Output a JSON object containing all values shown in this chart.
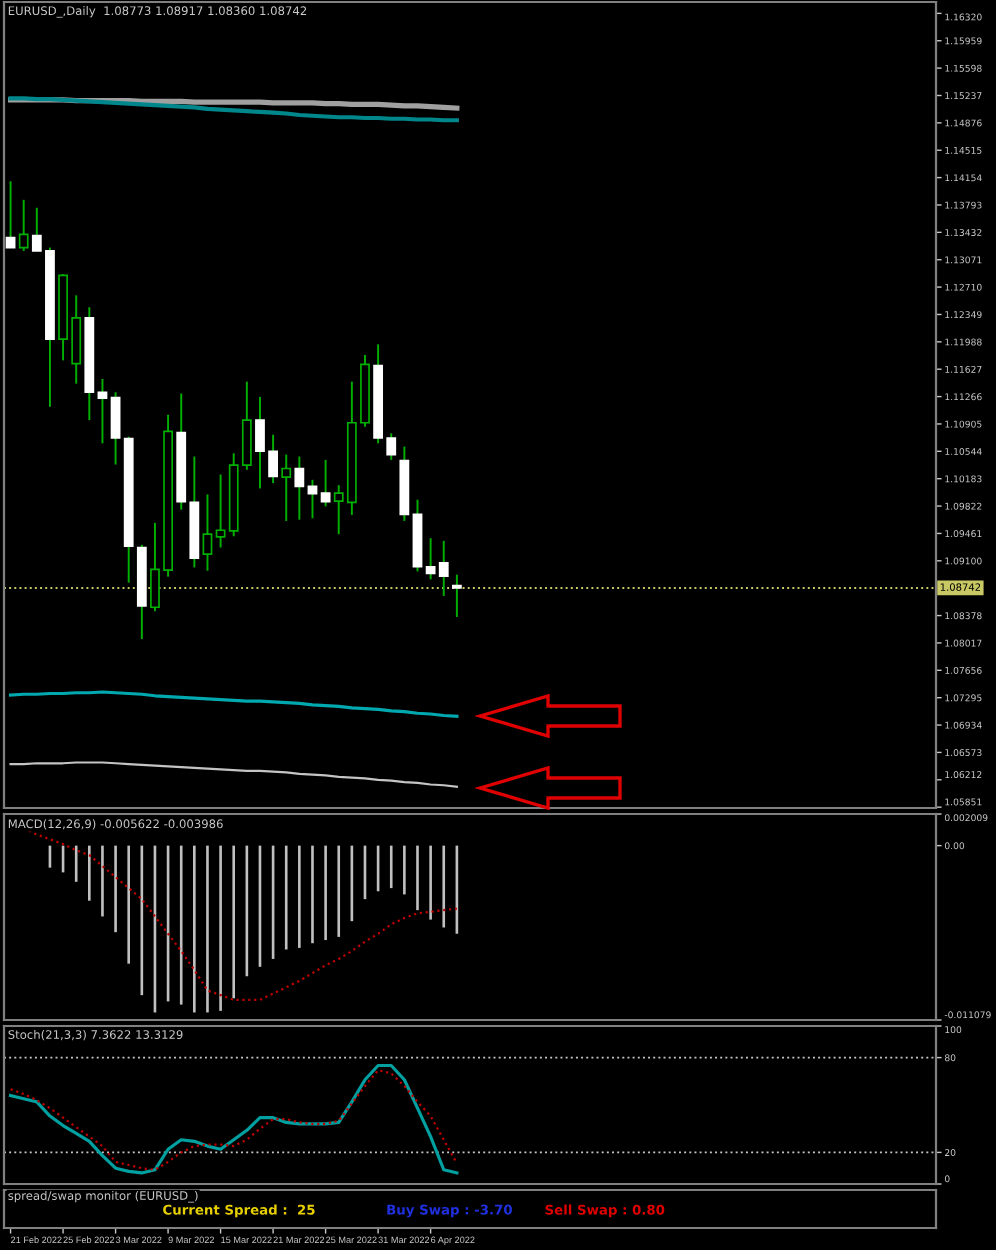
{
  "chart_data": [
    {
      "type": "candlestick",
      "title": "EURUSD_,Daily  1.08773 1.08917 1.08360 1.08742",
      "tick_labels": "y",
      "categories": [
        null,
        null,
        null,
        null,
        null,
        null,
        null,
        null,
        null,
        null,
        null,
        null,
        null,
        null,
        null,
        null,
        null,
        null,
        null,
        null,
        null,
        null,
        null,
        null,
        null,
        null,
        null,
        null,
        null,
        null,
        null,
        null,
        null,
        null,
        null,
        null,
        null,
        null,
        null,
        null,
        null,
        null,
        null,
        null,
        null,
        null,
        null,
        null,
        null,
        null,
        null,
        null,
        null,
        null,
        null,
        null,
        null,
        null,
        null,
        null,
        null,
        null,
        null,
        null,
        null,
        null,
        null,
        null,
        null,
        null,
        null
      ],
      "color": "#00b000",
      "colors": [
        "#ffffff",
        "#000000",
        "#ffffff",
        "#ffffff",
        "#000000",
        "#000000",
        "#ffffff",
        "#ffffff",
        "#ffffff",
        "#ffffff",
        "#ffffff",
        "#000000",
        "#000000",
        "#ffffff",
        "#ffffff",
        "#000000",
        "#000000",
        "#000000",
        "#000000",
        "#ffffff",
        "#ffffff",
        "#000000",
        "#ffffff",
        "#ffffff",
        "#ffffff",
        "#000000",
        "#000000",
        "#000000",
        "#ffffff",
        "#ffffff",
        "#ffffff",
        "#ffffff",
        "#ffffff",
        "#ffffff",
        "#ffffff",
        null,
        null,
        null,
        null,
        null,
        null,
        null,
        null,
        null,
        null,
        null,
        null,
        null,
        null,
        null,
        null,
        null,
        null,
        null,
        null,
        null,
        null,
        null,
        null,
        null,
        null,
        null,
        null,
        null,
        null,
        null,
        null,
        null,
        null,
        null,
        null
      ],
      "ohlc": [
        [
          1.13362,
          1.14106,
          1.13231,
          1.13231
        ],
        [
          1.13231,
          1.13861,
          1.13187,
          1.13406
        ],
        [
          1.13389,
          1.13756,
          1.13187,
          1.13187
        ],
        [
          1.13187,
          1.13231,
          1.11131,
          1.12024
        ],
        [
          1.12024,
          1.12881,
          1.11744,
          1.12864
        ],
        [
          1.117,
          1.12601,
          1.11437,
          1.12304
        ],
        [
          1.12304,
          1.12444,
          1.10956,
          1.11323
        ],
        [
          1.11323,
          1.11498,
          1.1065,
          1.11245
        ],
        [
          1.11253,
          1.11323,
          1.1037,
          1.1072
        ],
        [
          1.10711,
          1.10737,
          1.08812,
          1.09293
        ],
        [
          1.09276,
          1.09311,
          1.08068,
          1.08506
        ],
        [
          1.08488,
          1.096,
          1.08436,
          1.08987
        ],
        [
          1.08978,
          1.11026,
          1.08891,
          1.10807
        ],
        [
          1.1079,
          1.11306,
          1.09775,
          1.0988
        ],
        [
          1.09871,
          1.10475,
          1.09013,
          1.09136
        ],
        [
          1.09188,
          1.09976,
          1.08969,
          1.09451
        ],
        [
          1.09416,
          1.10238,
          1.09276,
          1.09503
        ],
        [
          1.09495,
          1.10518,
          1.09424,
          1.10361
        ],
        [
          1.10361,
          1.11463,
          1.103,
          1.10956
        ],
        [
          1.10956,
          1.11262,
          1.10055,
          1.10545
        ],
        [
          1.10545,
          1.10763,
          1.10125,
          1.10212
        ],
        [
          1.10203,
          1.10501,
          1.09626,
          1.10317
        ],
        [
          1.10317,
          1.10475,
          1.09643,
          1.10081
        ],
        [
          1.10081,
          1.10168,
          1.09661,
          1.09985
        ],
        [
          1.09993,
          1.10431,
          1.09818,
          1.0988
        ],
        [
          1.09888,
          1.10098,
          1.09451,
          1.09993
        ],
        [
          1.09871,
          1.11463,
          1.09705,
          1.10921
        ],
        [
          1.10921,
          1.11814,
          1.10868,
          1.11691
        ],
        [
          1.11674,
          1.11954,
          1.1065,
          1.1072
        ],
        [
          1.1072,
          1.10781,
          1.10431,
          1.10501
        ],
        [
          1.10422,
          1.10606,
          1.09626,
          1.09713
        ],
        [
          1.09713,
          1.09906,
          1.08961,
          1.09022
        ],
        [
          1.09022,
          1.09398,
          1.08856,
          1.08934
        ],
        [
          1.09074,
          1.09363,
          1.08637,
          1.08899
        ],
        [
          1.08773,
          1.08917,
          1.0836,
          1.08742
        ],
        null,
        null,
        null,
        null,
        null,
        null,
        null,
        null,
        null,
        null,
        null,
        null,
        null,
        null,
        null,
        null,
        null,
        null,
        null,
        null,
        null,
        null,
        null,
        null,
        null,
        null,
        null,
        null,
        null,
        null,
        null,
        null,
        null,
        null,
        null,
        null
      ],
      "series": [
        {
          "type": "line",
          "color": "#a0a0a0",
          "values": [
            1.1518,
            1.1518,
            1.1518,
            1.1518,
            1.1518,
            1.1517,
            1.1517,
            1.1517,
            1.1517,
            1.1517,
            1.1516,
            1.1516,
            1.1516,
            1.1516,
            1.1515,
            1.1515,
            1.1515,
            1.1515,
            1.1515,
            1.1515,
            1.1514,
            1.1514,
            1.1514,
            1.1514,
            1.1513,
            1.1513,
            1.1512,
            1.1512,
            1.1512,
            1.1511,
            1.151,
            1.151,
            1.1509,
            1.1508,
            1.1507,
            null,
            null,
            null,
            null,
            null,
            null,
            null,
            null,
            null,
            null,
            null,
            null,
            null,
            null,
            null,
            null,
            null,
            null,
            null,
            null,
            null,
            null,
            null,
            null,
            null,
            null,
            null,
            null,
            null,
            null,
            null,
            null,
            null,
            null,
            null,
            null
          ]
        },
        {
          "type": "line",
          "color": "#00878c",
          "values": [
            1.152,
            1.152,
            1.1519,
            1.1519,
            1.1518,
            1.1517,
            1.1516,
            1.1515,
            1.1514,
            1.1513,
            1.1512,
            1.1511,
            1.151,
            1.1509,
            1.1508,
            1.1506,
            1.1505,
            1.1504,
            1.1503,
            1.1502,
            1.1501,
            1.15,
            1.1498,
            1.1497,
            1.1496,
            1.1495,
            1.1495,
            1.1494,
            1.1494,
            1.1493,
            1.1493,
            1.1492,
            1.1492,
            1.1491,
            1.1491,
            null,
            null,
            null,
            null,
            null,
            null,
            null,
            null,
            null,
            null,
            null,
            null,
            null,
            null,
            null,
            null,
            null,
            null,
            null,
            null,
            null,
            null,
            null,
            null,
            null,
            null,
            null,
            null,
            null,
            null,
            null,
            null,
            null,
            null,
            null,
            null
          ]
        },
        {
          "type": "line",
          "color": "#00a8b0",
          "values": [
            1.0733,
            1.0734,
            1.0734,
            1.0735,
            1.0735,
            1.0736,
            1.0736,
            1.0737,
            1.0736,
            1.0735,
            1.0734,
            1.0732,
            1.0731,
            1.073,
            1.0729,
            1.0728,
            1.0727,
            1.0726,
            1.0725,
            1.0725,
            1.0724,
            1.0723,
            1.0722,
            1.072,
            1.0719,
            1.0718,
            1.0716,
            1.0715,
            1.0714,
            1.0712,
            1.0711,
            1.0709,
            1.0708,
            1.0706,
            1.0705,
            null,
            null,
            null,
            null,
            null,
            null,
            null,
            null,
            null,
            null,
            null,
            null,
            null,
            null,
            null,
            null,
            null,
            null,
            null,
            null,
            null,
            null,
            null,
            null,
            null,
            null,
            null,
            null,
            null,
            null,
            null,
            null,
            null,
            null,
            null,
            null
          ]
        },
        {
          "type": "line",
          "color": "#c4c4c4",
          "values": [
            1.0642,
            1.0642,
            1.0643,
            1.0643,
            1.0643,
            1.0644,
            1.0644,
            1.0644,
            1.0643,
            1.0642,
            1.0641,
            1.064,
            1.0639,
            1.0638,
            1.0637,
            1.0636,
            1.0635,
            1.0634,
            1.0633,
            1.0633,
            1.0632,
            1.0631,
            1.0629,
            1.0628,
            1.0627,
            1.0625,
            1.0624,
            1.0623,
            1.0621,
            1.062,
            1.0618,
            1.0617,
            1.0615,
            1.0614,
            1.0612,
            null,
            null,
            null,
            null,
            null,
            null,
            null,
            null,
            null,
            null,
            null,
            null,
            null,
            null,
            null,
            null,
            null,
            null,
            null,
            null,
            null,
            null,
            null,
            null,
            null,
            null,
            null,
            null,
            null,
            null,
            null,
            null,
            null,
            null,
            null,
            null
          ]
        }
      ],
      "ylim": [
        1.0584,
        1.1647
      ],
      "yticks": [
        {
          "value": 1.1632,
          "label": "1.16320"
        },
        1.15959,
        1.15598,
        1.15237,
        1.14876,
        1.14515,
        1.14154,
        1.13793,
        1.13432,
        1.13071,
        {
          "value": 1.1271,
          "label": "1.12710"
        },
        1.12349,
        1.11988,
        1.11627,
        1.11266,
        1.10905,
        1.10544,
        1.10183,
        1.09822,
        1.09461,
        {
          "value": 1.091,
          "label": "1.09100"
        },
        1.08378,
        1.08017,
        1.07656,
        1.07295,
        1.06934,
        1.06573,
        1.06212,
        1.05851
      ],
      "ref_lines": [
        {
          "axis": "y",
          "value": 1.08742,
          "label": "1.08742",
          "color": "#c8c864",
          "line_style": "dotted"
        }
      ]
    },
    {
      "type": "bar",
      "title": "MACD(12,26,9) -0.005622 -0.003986",
      "tick_labels": "y",
      "categories": [
        null,
        null,
        null,
        null,
        null,
        null,
        null,
        null,
        null,
        null,
        null,
        null,
        null,
        null,
        null,
        null,
        null,
        null,
        null,
        null,
        null,
        null,
        null,
        null,
        null,
        null,
        null,
        null,
        null,
        null,
        null,
        null,
        null,
        null,
        null,
        null,
        null,
        null,
        null,
        null,
        null,
        null,
        null,
        null,
        null,
        null,
        null,
        null,
        null,
        null,
        null,
        null,
        null,
        null,
        null,
        null,
        null,
        null,
        null,
        null,
        null,
        null,
        null,
        null,
        null,
        null,
        null,
        null,
        null,
        null,
        null
      ],
      "series": [
        {
          "type": "bar",
          "color": "#c0c0c0",
          "values": [
            null,
            null,
            null,
            -0.0014,
            -0.0017,
            -0.0023,
            -0.0035,
            -0.0045,
            -0.0055,
            -0.0075,
            -0.0095,
            -0.0106,
            -0.0099,
            -0.0101,
            -0.0106,
            -0.0106,
            -0.0105,
            -0.0097,
            -0.0083,
            -0.0077,
            -0.0072,
            -0.0066,
            -0.0065,
            -0.0062,
            -0.006,
            -0.0058,
            -0.0048,
            -0.0034,
            -0.0029,
            -0.0027,
            -0.0031,
            -0.0041,
            -0.0047,
            -0.0052,
            -0.0056,
            null,
            null,
            null,
            null,
            null,
            null,
            null,
            null,
            null,
            null,
            null,
            null,
            null,
            null,
            null,
            null,
            null,
            null,
            null,
            null,
            null,
            null,
            null,
            null,
            null,
            null,
            null,
            null,
            null,
            null,
            null,
            null,
            null,
            null,
            null,
            null
          ]
        },
        {
          "type": "line",
          "color": "#c00000",
          "line_style": "dotted",
          "values": [
            null,
            0.0011,
            0.0007,
            0.0004,
            0.0001,
            -0.0003,
            -0.0006,
            -0.0013,
            -0.002,
            -0.0027,
            -0.0034,
            -0.0045,
            -0.0056,
            -0.0067,
            -0.0079,
            -0.0092,
            -0.0095,
            -0.0098,
            -0.0098,
            -0.0098,
            -0.0094,
            -0.009,
            -0.0086,
            -0.0081,
            -0.0076,
            -0.0072,
            -0.0067,
            -0.0061,
            -0.0056,
            -0.005,
            -0.0046,
            -0.0043,
            -0.0042,
            -0.0041,
            -0.004,
            null,
            null,
            null,
            null,
            null,
            null,
            null,
            null,
            null,
            null,
            null,
            null,
            null,
            null,
            null,
            null,
            null,
            null,
            null,
            null,
            null,
            null,
            null,
            null,
            null,
            null,
            null,
            null,
            null,
            null,
            null,
            null,
            null,
            null,
            null,
            null
          ]
        }
      ],
      "ylim": [
        -0.011079,
        0.002009
      ],
      "yticks": [
        0.002009,
        {
          "value": 0,
          "label": "0.00"
        },
        -0.011079
      ]
    },
    {
      "type": "line",
      "title": "Stoch(21,3,3) 7.3622 13.3129",
      "tick_labels": "y",
      "categories": [
        null,
        null,
        null,
        null,
        null,
        null,
        null,
        null,
        null,
        null,
        null,
        null,
        null,
        null,
        null,
        null,
        null,
        null,
        null,
        null,
        null,
        null,
        null,
        null,
        null,
        null,
        null,
        null,
        null,
        null,
        null,
        null,
        null,
        null,
        null,
        null,
        null,
        null,
        null,
        null,
        null,
        null,
        null,
        null,
        null,
        null,
        null,
        null,
        null,
        null,
        null,
        null,
        null,
        null,
        null,
        null,
        null,
        null,
        null,
        null,
        null,
        null,
        null,
        null,
        null,
        null,
        null,
        null,
        null,
        null,
        null
      ],
      "series": [
        {
          "color": "#00a0a0",
          "values": [
            56,
            54,
            52,
            43,
            37,
            32,
            27,
            18,
            10,
            8,
            7,
            9,
            22,
            28,
            27,
            24,
            22,
            28,
            34,
            42,
            42,
            39,
            38,
            38,
            38,
            39,
            52,
            66,
            75,
            75,
            66,
            48,
            30,
            9,
            7,
            null,
            null,
            null,
            null,
            null,
            null,
            null,
            null,
            null,
            null,
            null,
            null,
            null,
            null,
            null,
            null,
            null,
            null,
            null,
            null,
            null,
            null,
            null,
            null,
            null,
            null,
            null,
            null,
            null,
            null,
            null,
            null,
            null,
            null,
            null,
            null
          ]
        },
        {
          "color": "#c00000",
          "line_style": "dotted",
          "values": [
            60,
            57,
            53,
            48,
            42,
            36,
            30,
            24,
            14,
            12,
            10,
            9,
            14,
            20,
            24,
            25,
            25,
            24,
            28,
            35,
            41,
            41,
            39,
            38,
            38,
            40,
            51,
            62,
            72,
            70,
            62,
            52,
            43,
            28,
            13,
            null,
            null,
            null,
            null,
            null,
            null,
            null,
            null,
            null,
            null,
            null,
            null,
            null,
            null,
            null,
            null,
            null,
            null,
            null,
            null,
            null,
            null,
            null,
            null,
            null,
            null,
            null,
            null,
            null,
            null,
            null,
            null,
            null,
            null,
            null,
            null
          ]
        }
      ],
      "ylim": [
        0,
        100
      ],
      "yticks": [
        100,
        80,
        20,
        0
      ],
      "ref_lines": [
        {
          "axis": "y",
          "value": 80,
          "color": "#c8c8c8",
          "line_style": "dotted"
        },
        {
          "axis": "y",
          "value": 20,
          "color": "#c8c8c8",
          "line_style": "dotted"
        }
      ]
    },
    {
      "type": "other",
      "title": "spread/swap monitor (EURUSD_)",
      "categories": [
        "21 Feb 2022",
        null,
        null,
        null,
        "25 Feb 2022",
        null,
        null,
        null,
        "3 Mar 2022",
        null,
        null,
        null,
        "9 Mar 2022",
        null,
        null,
        null,
        "15 Mar 2022",
        null,
        null,
        null,
        "21 Mar 2022",
        null,
        null,
        null,
        "25 Mar 2022",
        null,
        null,
        null,
        "31 Mar 2022",
        null,
        null,
        null,
        "6 Apr 2022",
        null,
        null,
        null,
        null,
        null,
        null,
        null,
        null,
        null,
        null,
        null,
        null,
        null,
        null,
        null,
        null,
        null,
        null,
        null,
        null,
        null,
        null,
        null,
        null,
        null,
        null,
        null,
        null,
        null,
        null,
        null,
        null,
        null,
        null,
        null,
        null,
        null,
        null
      ],
      "annotations": [
        "Current Spread :  25",
        "Buy Swap : -3.70",
        "Sell Swap : 0.80"
      ],
      "colors": [
        "#e8d000",
        "#2030e0",
        "#e00000"
      ]
    }
  ]
}
